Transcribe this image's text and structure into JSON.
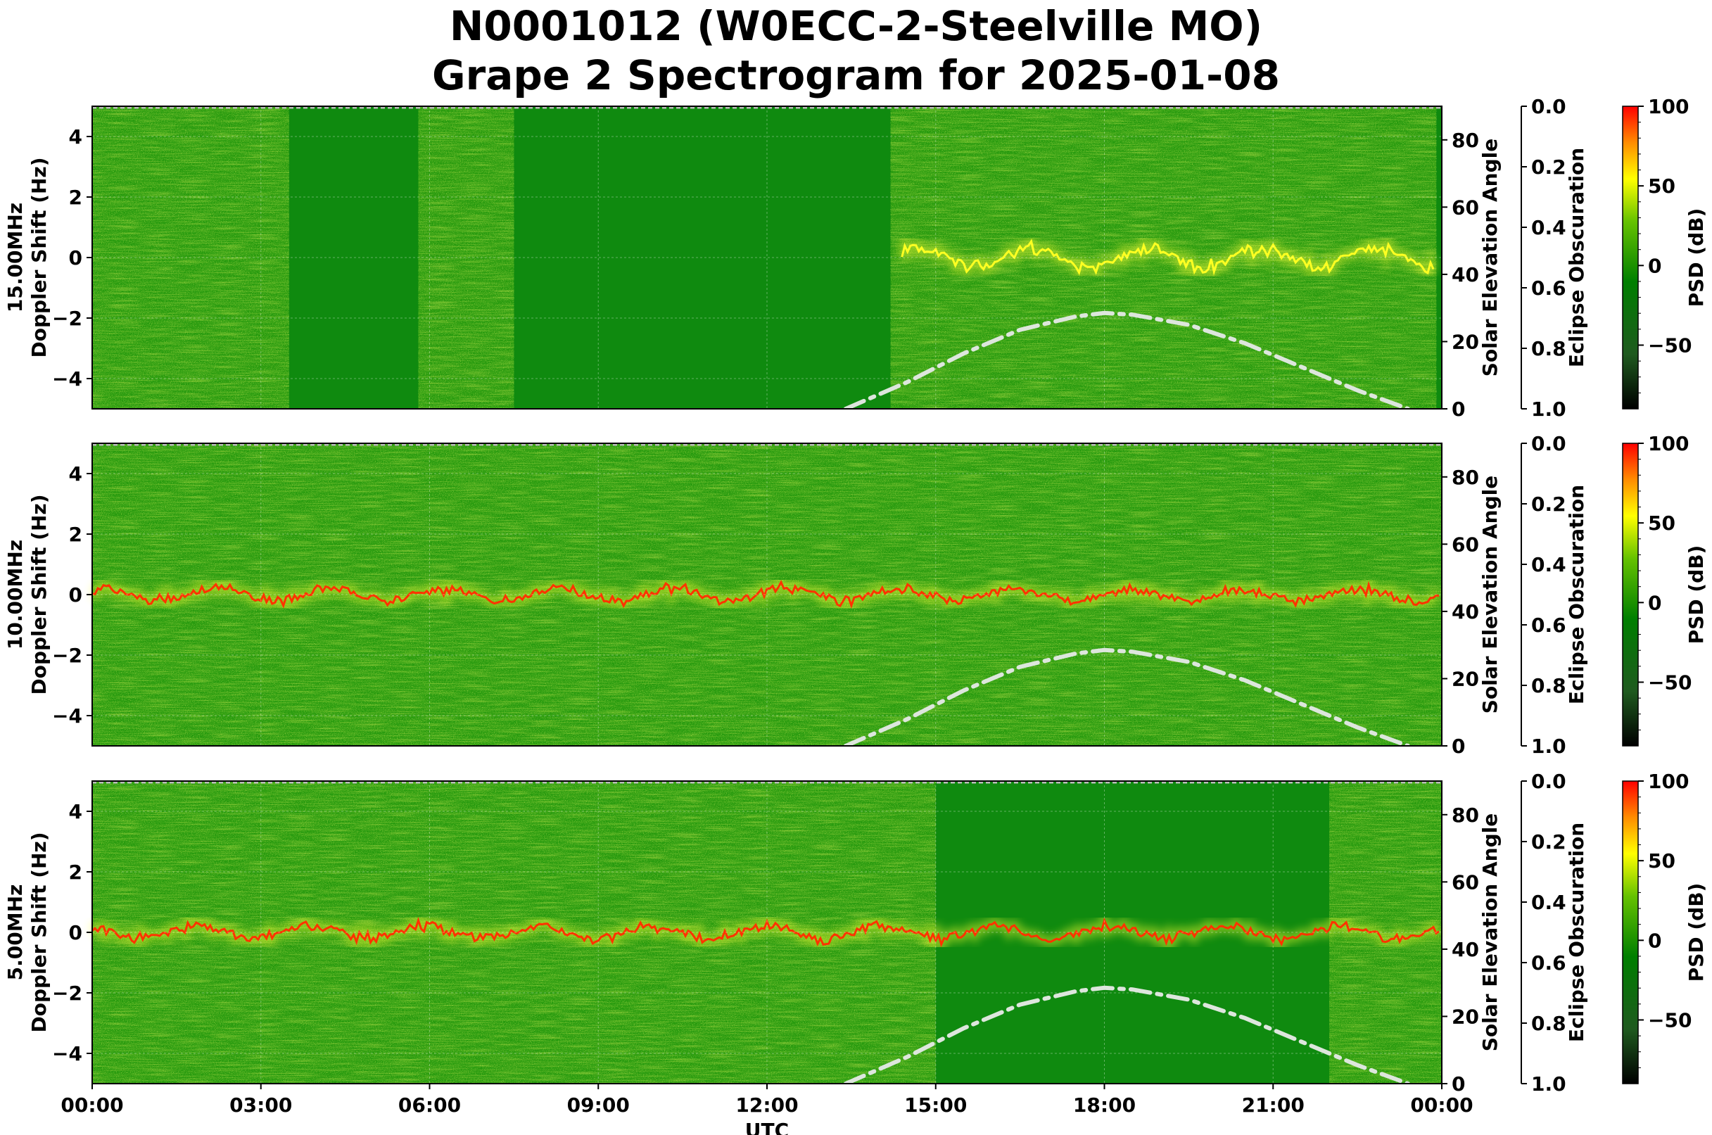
{
  "title_line1": "N0001012 (W0ECC-2-Steelville MO)",
  "title_line2": "Grape 2 Spectrogram for 2025-01-08",
  "chart_data": {
    "type": "heatmap",
    "title": "N0001012 (W0ECC-2-Steelville MO) Grape 2 Spectrogram for 2025-01-08",
    "xlabel": "UTC",
    "x_ticks": [
      "00:00",
      "03:00",
      "06:00",
      "09:00",
      "12:00",
      "15:00",
      "18:00",
      "21:00",
      "00:00"
    ],
    "xlim_hours": [
      0,
      24
    ],
    "panels": [
      {
        "frequency_label": "15.00MHz",
        "ylabel": "Doppler Shift (Hz)",
        "ylim": [
          -5,
          5
        ],
        "y_ticks": [
          4,
          2,
          0,
          -2,
          -4
        ],
        "activity_windows_hours": [
          [
            0,
            3.5
          ],
          [
            5.8,
            7.5
          ],
          [
            14.2,
            23.9
          ]
        ],
        "carrier_trace_hours": [
          14.4,
          23.9
        ],
        "carrier_color": "yellow"
      },
      {
        "frequency_label": "10.00MHz",
        "ylabel": "Doppler Shift (Hz)",
        "ylim": [
          -5,
          5
        ],
        "y_ticks": [
          4,
          2,
          0,
          -2,
          -4
        ],
        "activity_windows_hours": [
          [
            0,
            24
          ]
        ],
        "carrier_trace_hours": [
          0,
          24
        ],
        "carrier_color": "red"
      },
      {
        "frequency_label": "5.00MHz",
        "ylabel": "Doppler Shift (Hz)",
        "ylim": [
          -5,
          5
        ],
        "y_ticks": [
          4,
          2,
          0,
          -2,
          -4
        ],
        "activity_windows_hours": [
          [
            0,
            15
          ],
          [
            22,
            24
          ]
        ],
        "carrier_trace_hours": [
          0,
          24
        ],
        "carrier_color": "red"
      }
    ],
    "solar_elevation": {
      "ylabel": "Solar Elevation Angle",
      "ylim": [
        0,
        90
      ],
      "y_ticks": [
        80,
        60,
        40,
        20,
        0
      ],
      "line_style": "dash-dot",
      "line_color": "#dde6dd",
      "hours": [
        13.4,
        14.5,
        15.5,
        16.5,
        17.5,
        18.0,
        18.5,
        19.5,
        20.5,
        21.5,
        22.5,
        23.4
      ],
      "angles": [
        0,
        8,
        16.5,
        23.5,
        27.5,
        28.5,
        28,
        25,
        19.5,
        12.5,
        5.5,
        0
      ]
    },
    "eclipse_obscuration": {
      "ylabel": "Eclipse Obscuration",
      "ylim": [
        0,
        1
      ],
      "inverted": true,
      "y_ticks": [
        "0.0",
        "0.2",
        "0.4",
        "0.6",
        "0.8",
        "1.0"
      ],
      "line_color": "#bbbbbb",
      "value": 0.0
    },
    "colorbar": {
      "label": "PSD (dB)",
      "range": [
        -90,
        100
      ],
      "ticks": [
        "100",
        "50",
        "0",
        "−50"
      ],
      "colors": [
        "#000000",
        "#1f5a1f",
        "#007f00",
        "#66c200",
        "#ffff00",
        "#ff8c00",
        "#ff0000"
      ]
    },
    "grid": true
  }
}
